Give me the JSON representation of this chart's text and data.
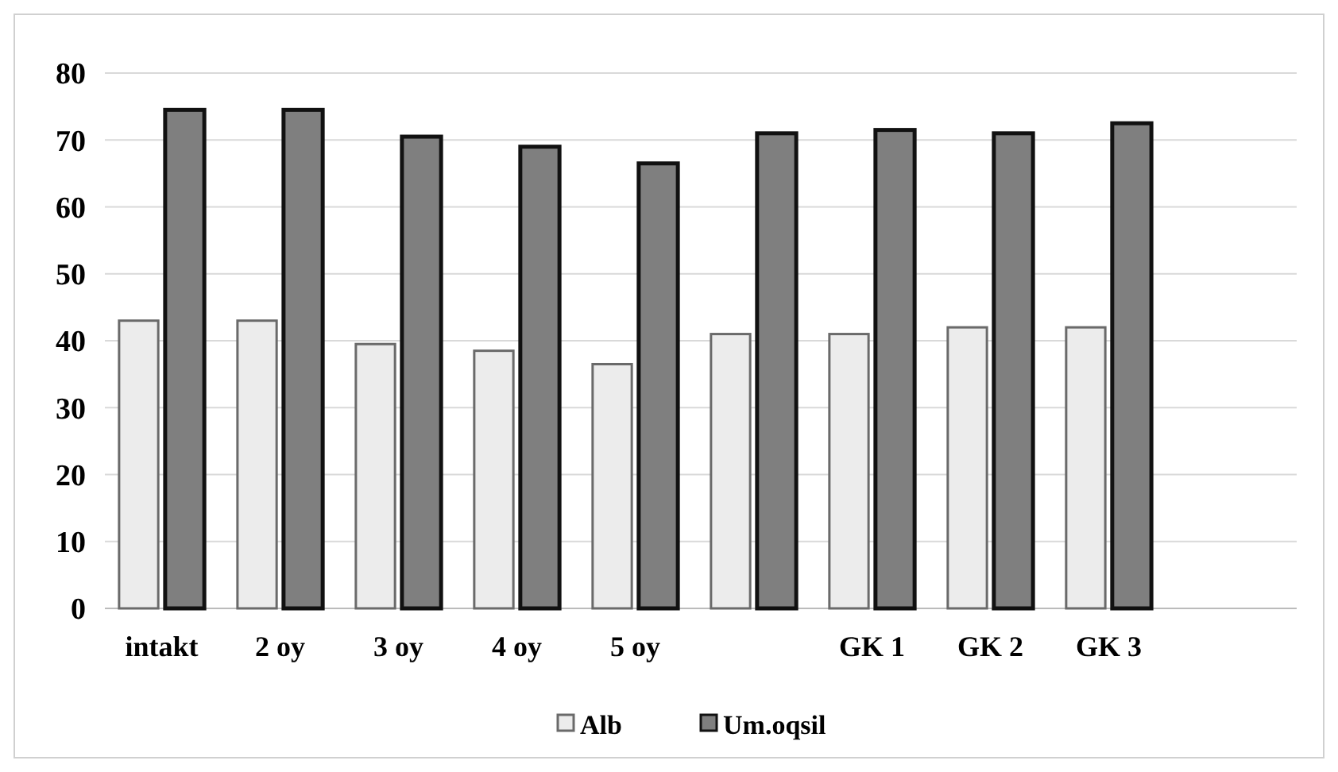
{
  "chart_data": {
    "type": "bar",
    "categories": [
      "intakt",
      "2 oy",
      "3 oy",
      "4 oy",
      "5 oy",
      null,
      "GK 1",
      "GK 2",
      "GK 3"
    ],
    "series": [
      {
        "name": "Alb",
        "color": "#ececec",
        "values": [
          43,
          43,
          39.5,
          38.5,
          36.5,
          41,
          41,
          42,
          42
        ]
      },
      {
        "name": "Um.oqsil",
        "color": "#7f7f7f",
        "values": [
          74.5,
          74.5,
          70.5,
          69,
          66.5,
          71,
          71.5,
          71,
          72.5
        ]
      }
    ],
    "ylim": [
      0,
      80
    ],
    "yticks": [
      0,
      10,
      20,
      30,
      40,
      50,
      60,
      70,
      80
    ],
    "grid": "y",
    "legend": "bottom"
  }
}
